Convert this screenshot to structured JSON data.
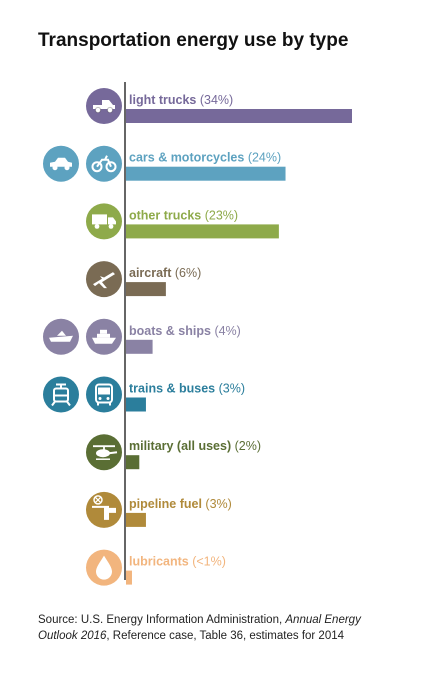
{
  "chart_data": {
    "type": "bar",
    "orientation": "horizontal",
    "title": "Transportation energy use by type",
    "categories": [
      "light trucks",
      "cars & motorcycles",
      "other trucks",
      "aircraft",
      "boats & ships",
      "trains & buses",
      "military (all uses)",
      "pipeline fuel",
      "lubricants"
    ],
    "value_labels": [
      "(34%)",
      "(24%)",
      "(23%)",
      "(6%)",
      "(4%)",
      "(3%)",
      "(2%)",
      "(3%)",
      "(<1%)"
    ],
    "values": [
      34,
      24,
      23,
      6,
      4,
      3,
      2,
      3,
      0.9
    ],
    "colors": [
      "#76699A",
      "#5DA2C0",
      "#8EAA4A",
      "#7A6B54",
      "#8A82A4",
      "#2B7E9C",
      "#5A6E34",
      "#B08A3A",
      "#F2B57E"
    ],
    "icons": [
      [
        "pickup-truck-icon"
      ],
      [
        "car-icon",
        "motorcycle-icon"
      ],
      [
        "delivery-truck-icon"
      ],
      [
        "airplane-icon"
      ],
      [
        "speedboat-icon",
        "cruise-ship-icon"
      ],
      [
        "tram-icon",
        "bus-icon"
      ],
      [
        "helicopter-icon"
      ],
      [
        "pipeline-icon"
      ],
      [
        "oil-drop-icon"
      ]
    ],
    "xlim": [
      0,
      34
    ],
    "grid": false,
    "legend": "none"
  },
  "source": {
    "prefix": "Source: U.S. Energy Information Administration, ",
    "publication": "Annual Energy Outlook 2016",
    "suffix": ", Reference case, Table 36, estimates for 2014"
  }
}
